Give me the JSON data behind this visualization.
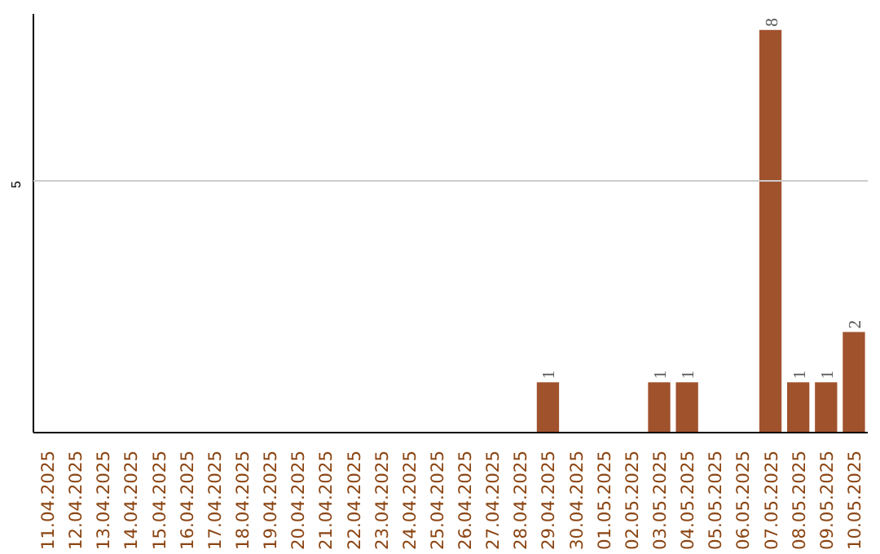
{
  "chart_data": {
    "type": "bar",
    "categories": [
      "11.04.2025",
      "12.04.2025",
      "13.04.2025",
      "14.04.2025",
      "15.04.2025",
      "16.04.2025",
      "17.04.2025",
      "18.04.2025",
      "19.04.2025",
      "20.04.2025",
      "21.04.2025",
      "22.04.2025",
      "23.04.2025",
      "24.04.2025",
      "25.04.2025",
      "26.04.2025",
      "27.04.2025",
      "28.04.2025",
      "29.04.2025",
      "30.04.2025",
      "01.05.2025",
      "02.05.2025",
      "03.05.2025",
      "04.05.2025",
      "05.05.2025",
      "06.05.2025",
      "07.05.2025",
      "08.05.2025",
      "09.05.2025",
      "10.05.2025"
    ],
    "values": [
      null,
      null,
      null,
      null,
      null,
      null,
      null,
      null,
      null,
      null,
      null,
      null,
      null,
      null,
      null,
      null,
      null,
      null,
      1,
      null,
      null,
      null,
      1,
      1,
      null,
      null,
      8,
      1,
      1,
      2
    ],
    "value_labels": [
      null,
      null,
      null,
      null,
      null,
      null,
      null,
      null,
      null,
      null,
      null,
      null,
      null,
      null,
      null,
      null,
      null,
      null,
      "1",
      null,
      null,
      null,
      "1",
      "1",
      null,
      null,
      "8",
      "1",
      "1",
      "2"
    ],
    "color": "#a0522d",
    "ref_lines": [
      {
        "axis": "y",
        "value": 5,
        "label": "5",
        "color": "#cccccc"
      }
    ]
  }
}
